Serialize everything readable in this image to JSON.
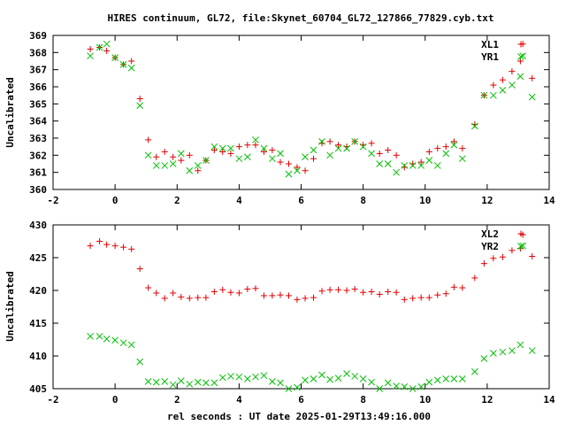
{
  "title": "HIRES continuum, GL72, file:Skynet_60704_GL72_127866_77829.cyb.txt",
  "xlabel": "rel seconds : UT date 2025-01-29T13:49:16.000",
  "colors": {
    "red": "#e00000",
    "green": "#00c000",
    "axis": "#000000"
  },
  "chart_data": [
    {
      "type": "scatter",
      "ylabel": "Uncalibrated",
      "xlim": [
        -2,
        14
      ],
      "ylim": [
        360,
        369
      ],
      "x_ticks": [
        -2,
        0,
        2,
        4,
        6,
        8,
        10,
        12,
        14
      ],
      "y_ticks": [
        360,
        361,
        362,
        363,
        364,
        365,
        366,
        367,
        368,
        369
      ],
      "legend": "top-right",
      "series": [
        {
          "name": "XL1",
          "marker": "plus",
          "color": "#e00000",
          "x": [
            -0.8,
            -0.5,
            -0.27,
            0,
            0.27,
            0.53,
            0.8,
            1.07,
            1.33,
            1.6,
            1.87,
            2.13,
            2.4,
            2.67,
            2.93,
            3.2,
            3.47,
            3.73,
            4,
            4.27,
            4.53,
            4.8,
            5.07,
            5.33,
            5.6,
            5.87,
            6.13,
            6.4,
            6.67,
            6.93,
            7.2,
            7.47,
            7.73,
            8,
            8.27,
            8.53,
            8.8,
            9.07,
            9.33,
            9.6,
            9.87,
            10.13,
            10.4,
            10.67,
            10.93,
            11.2,
            11.6,
            11.9,
            12.2,
            12.5,
            12.8,
            13.07,
            13.15,
            13.45
          ],
          "y": [
            368.2,
            368.3,
            368.1,
            367.7,
            367.3,
            367.5,
            365.3,
            362.9,
            361.9,
            362.2,
            361.9,
            361.7,
            362.0,
            361.1,
            361.7,
            362.3,
            362.2,
            362.1,
            362.5,
            362.6,
            362.6,
            362.2,
            362.3,
            361.6,
            361.5,
            361.3,
            361.1,
            361.8,
            362.7,
            362.8,
            362.6,
            362.5,
            362.8,
            362.6,
            362.7,
            362.1,
            362.3,
            362.0,
            361.3,
            361.5,
            361.6,
            362.2,
            362.4,
            362.5,
            362.8,
            362.4,
            363.8,
            365.5,
            366.1,
            366.4,
            366.9,
            367.5,
            368.5,
            366.5
          ]
        },
        {
          "name": "YR1",
          "marker": "cross",
          "color": "#00c000",
          "x": [
            -0.8,
            -0.5,
            -0.27,
            0,
            0.27,
            0.53,
            0.8,
            1.07,
            1.33,
            1.6,
            1.87,
            2.13,
            2.4,
            2.67,
            2.93,
            3.2,
            3.47,
            3.73,
            4,
            4.27,
            4.53,
            4.8,
            5.07,
            5.33,
            5.6,
            5.87,
            6.13,
            6.4,
            6.67,
            6.93,
            7.2,
            7.47,
            7.73,
            8,
            8.27,
            8.53,
            8.8,
            9.07,
            9.33,
            9.6,
            9.87,
            10.13,
            10.4,
            10.67,
            10.93,
            11.2,
            11.6,
            11.9,
            12.2,
            12.5,
            12.8,
            13.07,
            13.15,
            13.45
          ],
          "y": [
            367.8,
            368.3,
            368.5,
            367.7,
            367.3,
            367.1,
            364.9,
            362.0,
            361.4,
            361.4,
            361.5,
            362.1,
            361.1,
            361.4,
            361.7,
            362.5,
            362.4,
            362.4,
            361.8,
            361.9,
            362.9,
            362.4,
            361.8,
            362.1,
            360.9,
            361.1,
            361.9,
            362.3,
            362.8,
            362.0,
            362.4,
            362.4,
            362.8,
            362.5,
            362.1,
            361.5,
            361.5,
            361.0,
            361.4,
            361.4,
            361.4,
            361.7,
            361.4,
            362.1,
            362.6,
            361.8,
            363.7,
            365.5,
            365.5,
            365.8,
            366.1,
            366.6,
            367.8,
            365.4
          ]
        }
      ]
    },
    {
      "type": "scatter",
      "ylabel": "Uncalibrated",
      "xlabel": "rel seconds : UT date 2025-01-29T13:49:16.000",
      "xlim": [
        -2,
        14
      ],
      "ylim": [
        405,
        430
      ],
      "x_ticks": [
        -2,
        0,
        2,
        4,
        6,
        8,
        10,
        12,
        14
      ],
      "y_ticks": [
        405,
        410,
        415,
        420,
        425,
        430
      ],
      "legend": "top-right",
      "series": [
        {
          "name": "XL2",
          "marker": "plus",
          "color": "#e00000",
          "x": [
            -0.8,
            -0.5,
            -0.27,
            0,
            0.27,
            0.53,
            0.8,
            1.07,
            1.33,
            1.6,
            1.87,
            2.13,
            2.4,
            2.67,
            2.93,
            3.2,
            3.47,
            3.73,
            4,
            4.27,
            4.53,
            4.8,
            5.07,
            5.33,
            5.6,
            5.87,
            6.13,
            6.4,
            6.67,
            6.93,
            7.2,
            7.47,
            7.73,
            8,
            8.27,
            8.53,
            8.8,
            9.07,
            9.33,
            9.6,
            9.87,
            10.13,
            10.4,
            10.67,
            10.93,
            11.2,
            11.6,
            11.9,
            12.2,
            12.5,
            12.8,
            13.07,
            13.15,
            13.45
          ],
          "y": [
            426.8,
            427.5,
            427.0,
            426.8,
            426.6,
            426.3,
            423.3,
            420.4,
            419.6,
            418.8,
            419.6,
            419.0,
            418.8,
            418.9,
            418.9,
            419.8,
            420.1,
            419.7,
            419.6,
            420.2,
            420.3,
            419.2,
            419.2,
            419.3,
            419.2,
            418.6,
            418.8,
            418.9,
            419.9,
            420.1,
            420.1,
            420.0,
            420.2,
            419.7,
            419.8,
            419.4,
            419.8,
            419.7,
            418.6,
            418.8,
            418.9,
            418.9,
            419.3,
            419.5,
            420.5,
            420.4,
            421.9,
            424.1,
            424.9,
            425.1,
            426.1,
            426.4,
            428.5,
            425.2
          ]
        },
        {
          "name": "YR2",
          "marker": "cross",
          "color": "#00c000",
          "x": [
            -0.8,
            -0.5,
            -0.27,
            0,
            0.27,
            0.53,
            0.8,
            1.07,
            1.33,
            1.6,
            1.87,
            2.13,
            2.4,
            2.67,
            2.93,
            3.2,
            3.47,
            3.73,
            4,
            4.27,
            4.53,
            4.8,
            5.07,
            5.33,
            5.6,
            5.87,
            6.13,
            6.4,
            6.67,
            6.93,
            7.2,
            7.47,
            7.73,
            8,
            8.27,
            8.53,
            8.8,
            9.07,
            9.33,
            9.6,
            9.87,
            10.13,
            10.4,
            10.67,
            10.93,
            11.2,
            11.6,
            11.9,
            12.2,
            12.5,
            12.8,
            13.07,
            13.15,
            13.45
          ],
          "y": [
            413.0,
            413.0,
            412.6,
            412.4,
            412.0,
            411.7,
            409.1,
            406.1,
            406.0,
            406.1,
            405.6,
            406.2,
            405.7,
            406.0,
            405.9,
            405.9,
            406.7,
            406.9,
            406.8,
            406.5,
            406.8,
            407.0,
            406.1,
            405.9,
            405.0,
            405.2,
            406.3,
            406.5,
            407.1,
            406.4,
            406.6,
            407.3,
            406.9,
            406.5,
            406.0,
            405.0,
            405.9,
            405.4,
            405.3,
            405.0,
            405.3,
            406.0,
            406.3,
            406.5,
            406.5,
            406.5,
            407.6,
            409.6,
            410.4,
            410.6,
            410.8,
            411.7,
            426.8,
            410.8
          ]
        }
      ]
    }
  ]
}
